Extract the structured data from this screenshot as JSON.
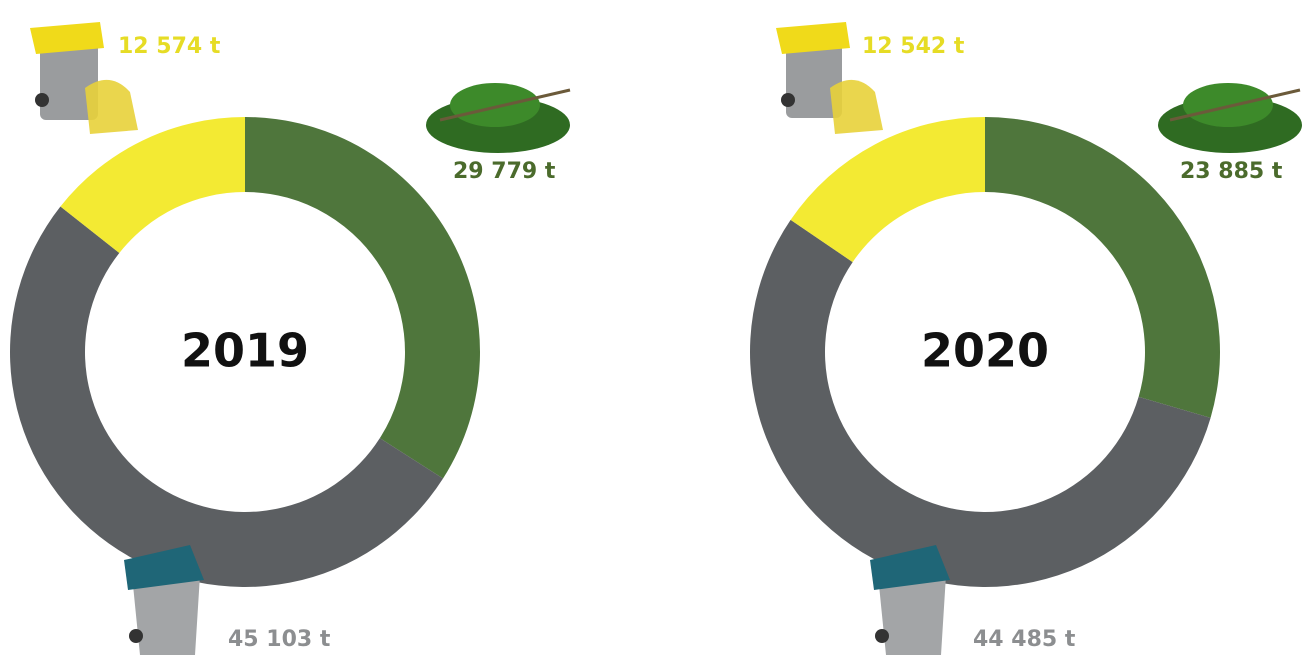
{
  "chart_data": [
    {
      "type": "donut",
      "title": "2019",
      "values": [
        29779,
        45103,
        12574
      ],
      "value_labels": [
        "29 779 t",
        "45 103 t",
        "12 574 t"
      ],
      "colors": [
        "#4f763c",
        "#5c5f62",
        "#f3ea33"
      ]
    },
    {
      "type": "donut",
      "title": "2020",
      "values": [
        23885,
        44485,
        12542
      ],
      "value_labels": [
        "23 885 t",
        "44 485 t",
        "12 542 t"
      ],
      "colors": [
        "#4f763c",
        "#5c5f62",
        "#f3ea33"
      ]
    }
  ]
}
